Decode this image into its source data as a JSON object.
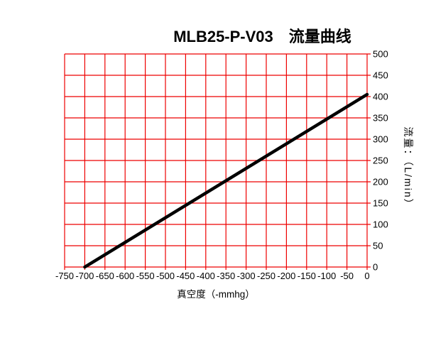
{
  "chart_data": {
    "type": "line",
    "title": "MLB25-P-V03　流量曲线",
    "xlabel": "真空度（-mmhg）",
    "ylabel": "流量：（L/min）",
    "xlim": [
      -750,
      0
    ],
    "ylim": [
      0,
      500
    ],
    "x_ticks": [
      -750,
      -700,
      -650,
      -600,
      -550,
      -500,
      -450,
      -400,
      -350,
      -300,
      -250,
      -200,
      -150,
      -100,
      -50,
      0
    ],
    "y_ticks": [
      0,
      50,
      100,
      150,
      200,
      250,
      300,
      350,
      400,
      450,
      500
    ],
    "grid": true,
    "legend_position": "none",
    "y_axis_side": "right",
    "colors": {
      "grid": "#ee0000",
      "line": "#000000",
      "text": "#000000",
      "background": "#ffffff"
    },
    "series": [
      {
        "name": "流量曲线",
        "x": [
          -700,
          0
        ],
        "y": [
          0,
          405
        ]
      }
    ]
  }
}
